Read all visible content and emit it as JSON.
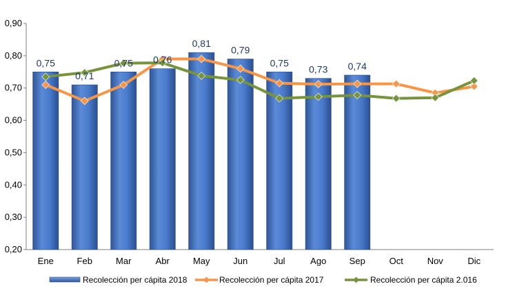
{
  "chart_data": {
    "type": "bar",
    "categories": [
      "Ene",
      "Feb",
      "Mar",
      "Abr",
      "May",
      "Jun",
      "Jul",
      "Ago",
      "Sep",
      "Oct",
      "Nov",
      "Dic"
    ],
    "ylim": [
      0.2,
      0.9
    ],
    "yticks": [
      "0,20",
      "0,30",
      "0,40",
      "0,50",
      "0,60",
      "0,70",
      "0,80",
      "0,90"
    ],
    "grid": false,
    "legend_position": "bottom",
    "series": [
      {
        "name": "Recolección per cápita 2018",
        "kind": "bar",
        "color": "#4472c4",
        "values": [
          0.75,
          0.71,
          0.75,
          0.76,
          0.81,
          0.79,
          0.75,
          0.73,
          0.74,
          null,
          null,
          null
        ],
        "labels": [
          "0,75",
          "0,71",
          "0,75",
          "0,76",
          "0,81",
          "0,79",
          "0,75",
          "0,73",
          "0,74",
          "",
          "",
          ""
        ]
      },
      {
        "name": "Recolección per cápita 2017",
        "kind": "line",
        "color": "#f79646",
        "values": [
          0.71,
          0.66,
          0.71,
          0.79,
          0.79,
          0.76,
          0.715,
          0.712,
          0.713,
          0.713,
          0.685,
          0.705
        ]
      },
      {
        "name": "Recolección per cápita 2.016",
        "kind": "line",
        "color": "#77933c",
        "values": [
          0.735,
          0.748,
          0.777,
          0.778,
          0.738,
          0.725,
          0.668,
          0.673,
          0.678,
          0.668,
          0.67,
          0.723
        ]
      }
    ]
  }
}
